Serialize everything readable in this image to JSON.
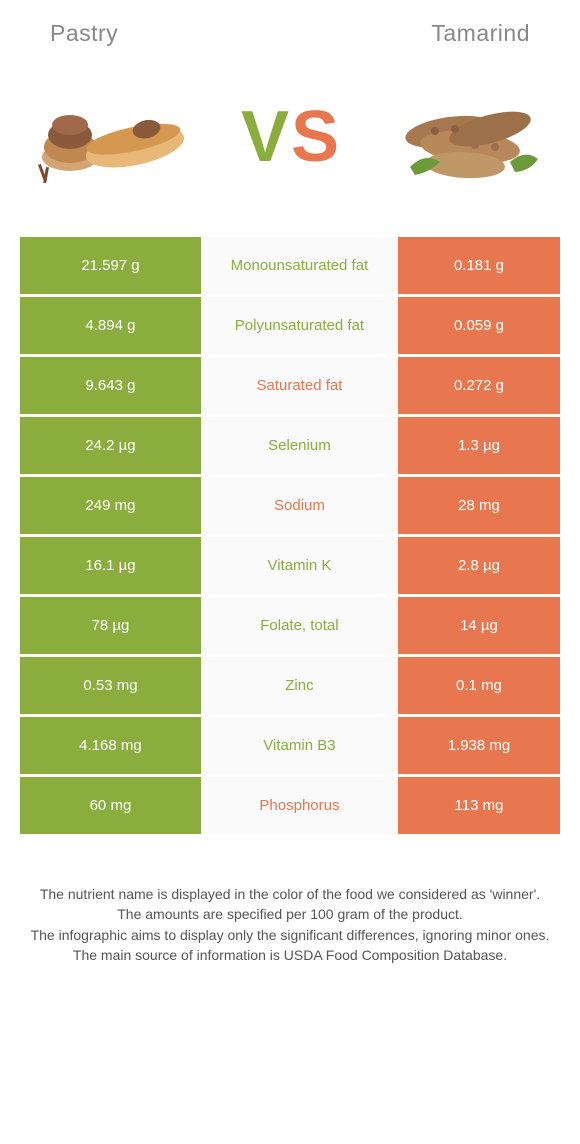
{
  "header": {
    "left": "Pastry",
    "right": "Tamarind"
  },
  "vs": {
    "v": "V",
    "s": "S"
  },
  "colors": {
    "green": "#8aad3e",
    "orange": "#e8764f",
    "mid_bg": "#fafafa",
    "text": "#555"
  },
  "rows": [
    {
      "left": "21.597 g",
      "label": "Monounsaturated fat",
      "right": "0.181 g",
      "winner": "left"
    },
    {
      "left": "4.894 g",
      "label": "Polyunsaturated fat",
      "right": "0.059 g",
      "winner": "left"
    },
    {
      "left": "9.643 g",
      "label": "Saturated fat",
      "right": "0.272 g",
      "winner": "right"
    },
    {
      "left": "24.2 µg",
      "label": "Selenium",
      "right": "1.3 µg",
      "winner": "left"
    },
    {
      "left": "249 mg",
      "label": "Sodium",
      "right": "28 mg",
      "winner": "right"
    },
    {
      "left": "16.1 µg",
      "label": "Vitamin K",
      "right": "2.8 µg",
      "winner": "left"
    },
    {
      "left": "78 µg",
      "label": "Folate, total",
      "right": "14 µg",
      "winner": "left"
    },
    {
      "left": "0.53 mg",
      "label": "Zinc",
      "right": "0.1 mg",
      "winner": "left"
    },
    {
      "left": "4.168 mg",
      "label": "Vitamin B3",
      "right": "1.938 mg",
      "winner": "left"
    },
    {
      "left": "60 mg",
      "label": "Phosphorus",
      "right": "113 mg",
      "winner": "right"
    }
  ],
  "footer": {
    "l1": "The nutrient name is displayed in the color of the food we considered as 'winner'.",
    "l2": "The amounts are specified per 100 gram of the product.",
    "l3": "The infographic aims to display only the significant differences, ignoring minor ones.",
    "l4": "The main source of information is USDA Food Composition Database."
  }
}
